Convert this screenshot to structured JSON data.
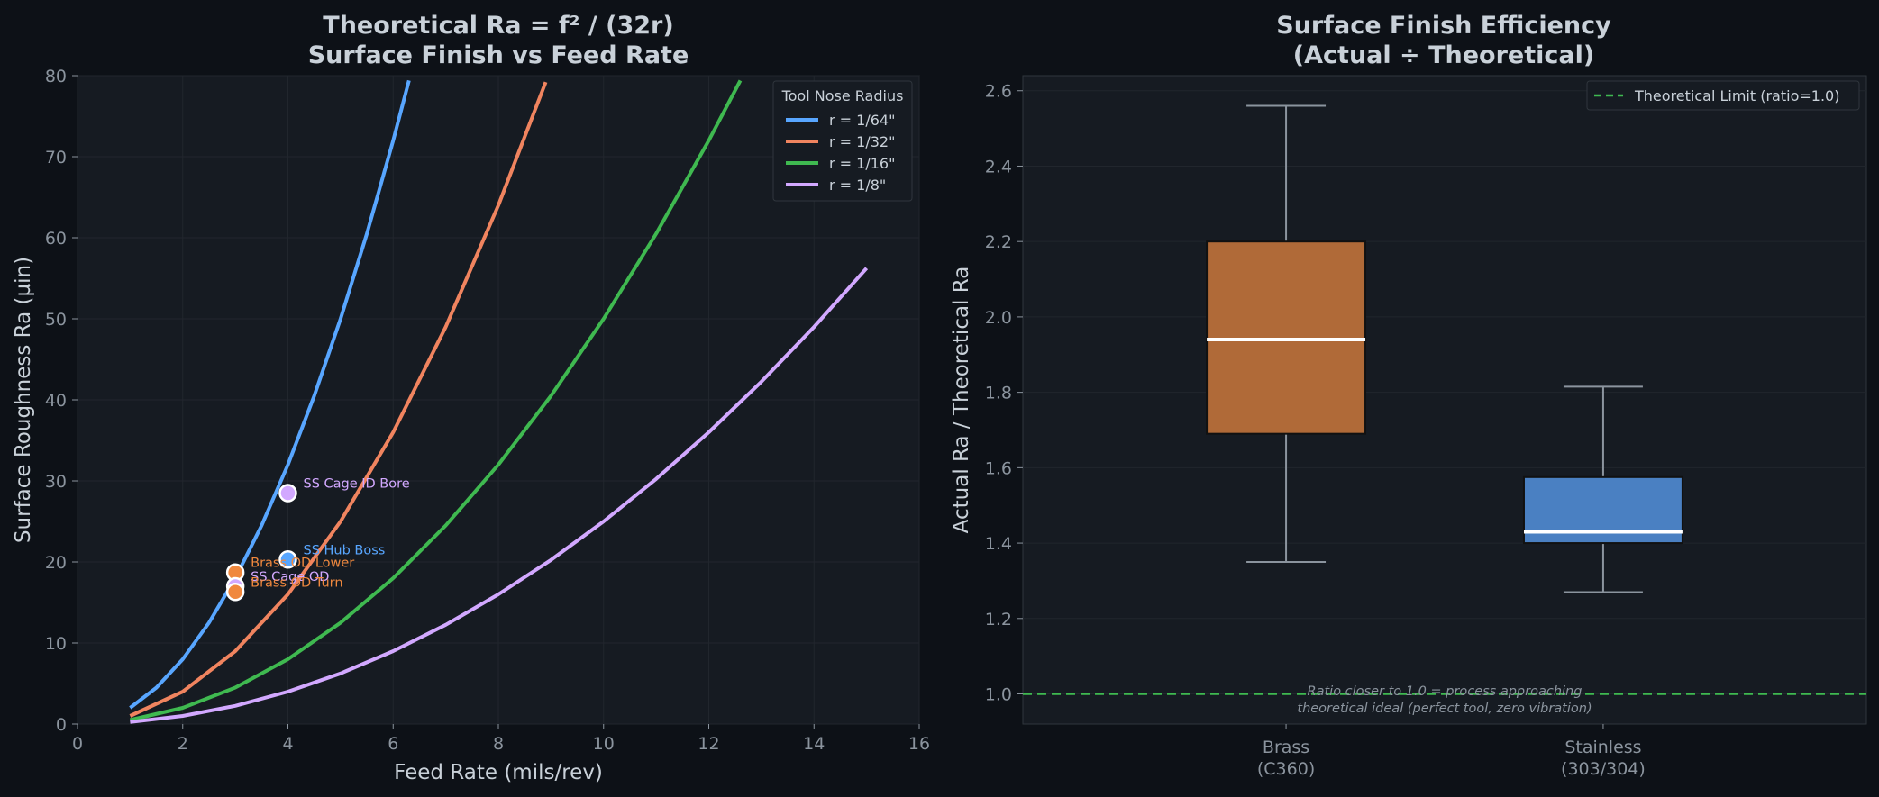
{
  "colors": {
    "background": "#0d1117",
    "panel": "#161b22",
    "grid": "#21262d",
    "text": "#c9d1d9",
    "muted": "#8b949e"
  },
  "chart_data": [
    {
      "type": "line",
      "title": "Theoretical Ra = f² / (32r)",
      "subtitle": "Surface Finish vs Feed Rate",
      "xlabel": "Feed Rate (mils/rev)",
      "ylabel": "Surface Roughness Ra (µin)",
      "xlim": [
        0,
        16
      ],
      "ylim": [
        0,
        80
      ],
      "xticks": [
        0,
        2,
        4,
        6,
        8,
        10,
        12,
        14,
        16
      ],
      "yticks": [
        0,
        10,
        20,
        30,
        40,
        50,
        60,
        70,
        80
      ],
      "grid": true,
      "legend": {
        "title": "Tool Nose Radius",
        "placement": "top-right"
      },
      "series": [
        {
          "name": "r = 1/64\"",
          "color": "#58a6ff",
          "x": [
            1,
            1.5,
            2,
            2.5,
            3,
            3.5,
            4,
            4.5,
            5,
            5.5,
            6,
            6.3
          ],
          "y": [
            2.0,
            4.5,
            8.0,
            12.5,
            18.0,
            24.5,
            32.0,
            40.5,
            50.0,
            60.5,
            72.0,
            79.4
          ]
        },
        {
          "name": "r = 1/32\"",
          "color": "#f0845f",
          "x": [
            1,
            2,
            3,
            4,
            5,
            6,
            7,
            8,
            8.9
          ],
          "y": [
            1.0,
            4.0,
            9.0,
            16.0,
            25.0,
            36.0,
            49.0,
            64.0,
            79.2
          ]
        },
        {
          "name": "r = 1/16\"",
          "color": "#3fb950",
          "x": [
            1,
            2,
            3,
            4,
            5,
            6,
            7,
            8,
            9,
            10,
            11,
            12,
            12.6
          ],
          "y": [
            0.5,
            2.0,
            4.5,
            8.0,
            12.5,
            18.0,
            24.5,
            32.0,
            40.5,
            50.0,
            60.5,
            72.0,
            79.4
          ]
        },
        {
          "name": "r = 1/8\"",
          "color": "#d2a8ff",
          "x": [
            1,
            2,
            3,
            4,
            5,
            6,
            7,
            8,
            9,
            10,
            11,
            12,
            13,
            14,
            15
          ],
          "y": [
            0.25,
            1.0,
            2.25,
            4.0,
            6.25,
            9.0,
            12.25,
            16.0,
            20.25,
            25.0,
            30.25,
            36.0,
            42.25,
            49.0,
            56.25
          ]
        }
      ],
      "points": [
        {
          "label": "SS Cage ID Bore",
          "x": 4,
          "y": 28.5,
          "color": "#d2a8ff"
        },
        {
          "label": "SS Hub Boss",
          "x": 4,
          "y": 20.3,
          "color": "#58a6ff"
        },
        {
          "label": "Brass OD Lower",
          "x": 3,
          "y": 18.7,
          "color": "#f0883e"
        },
        {
          "label": "SS Cage OD",
          "x": 3,
          "y": 17.0,
          "color": "#d2a8ff"
        },
        {
          "label": "Brass OD Turn",
          "x": 3,
          "y": 16.3,
          "color": "#f0883e"
        }
      ]
    },
    {
      "type": "box",
      "title": "Surface Finish Efficiency",
      "subtitle": "(Actual ÷ Theoretical)",
      "xlabel": "",
      "ylabel": "Actual Ra / Theoretical Ra",
      "ylim": [
        0.92,
        2.64
      ],
      "yticks": [
        1.0,
        1.2,
        1.4,
        1.6,
        1.8,
        2.0,
        2.2,
        2.4,
        2.6
      ],
      "grid": true,
      "categories": [
        "Brass\n(C360)",
        "Stainless\n(303/304)"
      ],
      "boxes": [
        {
          "category": "Brass\n(C360)",
          "whisker_low": 1.35,
          "q1": 1.69,
          "median": 1.94,
          "q3": 2.2,
          "whisker_high": 2.56,
          "color": "#b06a38"
        },
        {
          "category": "Stainless\n(303/304)",
          "whisker_low": 1.27,
          "q1": 1.4,
          "median": 1.43,
          "q3": 1.575,
          "whisker_high": 1.815,
          "color": "#4a80c2"
        }
      ],
      "reference_line": {
        "name": "Theoretical Limit (ratio=1.0)",
        "y": 1.0,
        "color": "#3fb950"
      },
      "legend": {
        "placement": "top-right"
      },
      "annotation": "Ratio closer to 1.0 = process approaching\ntheoretical ideal (perfect tool, zero vibration)"
    }
  ]
}
